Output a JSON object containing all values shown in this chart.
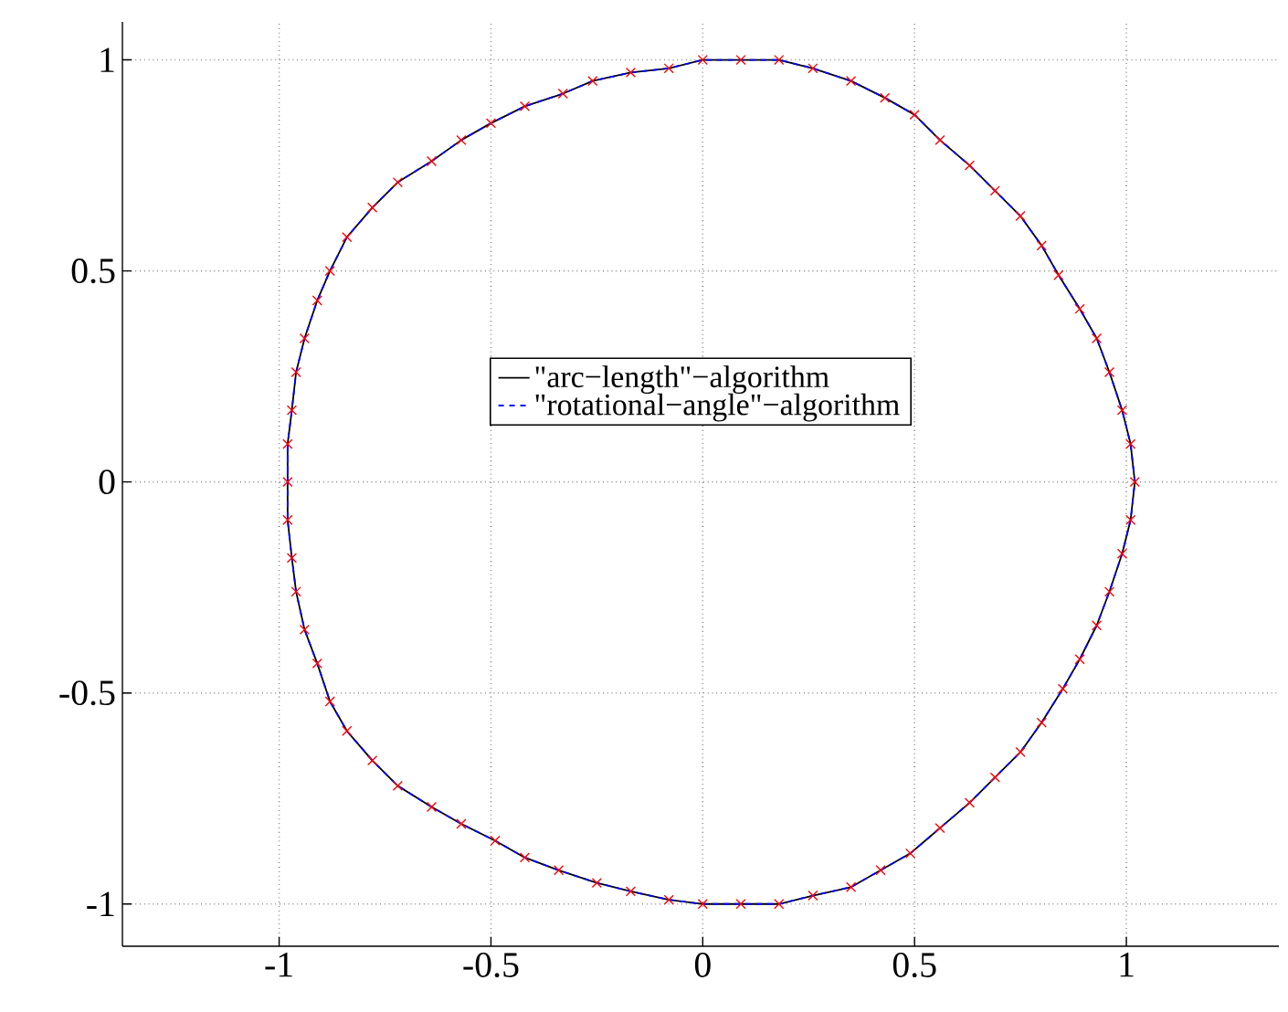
{
  "chart_data": {
    "type": "line",
    "xlim": [
      -1.37,
      1.36
    ],
    "ylim": [
      -1.1,
      1.09
    ],
    "xticks": [
      -1,
      -0.5,
      0,
      0.5,
      1
    ],
    "yticks": [
      -1,
      -0.5,
      0,
      0.5,
      1
    ],
    "grid": true,
    "legend": "center",
    "series": [
      {
        "name": "\"arc−length\"−algorithm",
        "color": "#000000",
        "line_style": "solid",
        "marker": "none",
        "x": [
          -0.98,
          -0.98,
          -0.97,
          -0.96,
          -0.94,
          -0.91,
          -0.88,
          -0.84,
          -0.78,
          -0.72,
          -0.64,
          -0.57,
          -0.5,
          -0.42,
          -0.33,
          -0.26,
          -0.17,
          -0.08,
          0,
          0.09,
          0.18,
          0.26,
          0.35,
          0.43,
          0.5,
          0.56,
          0.63,
          0.69,
          0.75,
          0.8,
          0.84,
          0.89,
          0.93,
          0.96,
          0.99,
          1.01,
          1.02,
          1.01,
          0.99,
          0.96,
          0.93,
          0.89,
          0.85,
          0.8,
          0.75,
          0.69,
          0.63,
          0.56,
          0.49,
          0.42,
          0.35,
          0.26,
          0.18,
          0.09,
          0,
          -0.08,
          -0.17,
          -0.25,
          -0.34,
          -0.42,
          -0.49,
          -0.57,
          -0.64,
          -0.72,
          -0.78,
          -0.84,
          -0.88,
          -0.91,
          -0.94,
          -0.96,
          -0.97,
          -0.98,
          -0.98,
          -0.98
        ],
        "values": [
          0,
          0.09,
          0.17,
          0.26,
          0.34,
          0.43,
          0.5,
          0.58,
          0.65,
          0.71,
          0.76,
          0.81,
          0.85,
          0.89,
          0.92,
          0.95,
          0.97,
          0.98,
          1,
          1,
          1,
          0.98,
          0.95,
          0.91,
          0.87,
          0.81,
          0.75,
          0.69,
          0.63,
          0.56,
          0.49,
          0.41,
          0.34,
          0.26,
          0.17,
          0.09,
          0,
          -0.09,
          -0.17,
          -0.26,
          -0.34,
          -0.42,
          -0.49,
          -0.57,
          -0.64,
          -0.7,
          -0.76,
          -0.82,
          -0.88,
          -0.92,
          -0.96,
          -0.98,
          -1,
          -1,
          -1,
          -0.99,
          -0.97,
          -0.95,
          -0.92,
          -0.89,
          -0.85,
          -0.81,
          -0.77,
          -0.72,
          -0.66,
          -0.59,
          -0.52,
          -0.43,
          -0.35,
          -0.26,
          -0.18,
          -0.09,
          0,
          0.09
        ]
      },
      {
        "name": "\"rotational−angle\"−algorithm",
        "color": "#0000ff",
        "line_style": "dashed",
        "marker": "none",
        "x": [
          -0.98,
          -0.98,
          -0.97,
          -0.96,
          -0.94,
          -0.91,
          -0.88,
          -0.84,
          -0.78,
          -0.72,
          -0.64,
          -0.57,
          -0.5,
          -0.42,
          -0.33,
          -0.26,
          -0.17,
          -0.08,
          0,
          0.09,
          0.18,
          0.26,
          0.35,
          0.43,
          0.5,
          0.56,
          0.63,
          0.69,
          0.75,
          0.8,
          0.84,
          0.89,
          0.93,
          0.96,
          0.99,
          1.01,
          1.02,
          1.01,
          0.99,
          0.96,
          0.93,
          0.89,
          0.85,
          0.8,
          0.75,
          0.69,
          0.63,
          0.56,
          0.49,
          0.42,
          0.35,
          0.26,
          0.18,
          0.09,
          0,
          -0.08,
          -0.17,
          -0.25,
          -0.34,
          -0.42,
          -0.49,
          -0.57,
          -0.64,
          -0.72,
          -0.78,
          -0.84,
          -0.88,
          -0.91,
          -0.94,
          -0.96,
          -0.97,
          -0.98,
          -0.98,
          -0.98
        ],
        "values": [
          0,
          0.09,
          0.17,
          0.26,
          0.34,
          0.43,
          0.5,
          0.58,
          0.65,
          0.71,
          0.76,
          0.81,
          0.85,
          0.89,
          0.92,
          0.95,
          0.97,
          0.98,
          1,
          1,
          1,
          0.98,
          0.95,
          0.91,
          0.87,
          0.81,
          0.75,
          0.69,
          0.63,
          0.56,
          0.49,
          0.41,
          0.34,
          0.26,
          0.17,
          0.09,
          0,
          -0.09,
          -0.17,
          -0.26,
          -0.34,
          -0.42,
          -0.49,
          -0.57,
          -0.64,
          -0.7,
          -0.76,
          -0.82,
          -0.88,
          -0.92,
          -0.96,
          -0.98,
          -1,
          -1,
          -1,
          -0.99,
          -0.97,
          -0.95,
          -0.92,
          -0.89,
          -0.85,
          -0.81,
          -0.77,
          -0.72,
          -0.66,
          -0.59,
          -0.52,
          -0.43,
          -0.35,
          -0.26,
          -0.18,
          -0.09,
          0,
          0.09
        ]
      },
      {
        "type": "scatter",
        "color": "#ff0000",
        "marker": "cross",
        "x": [
          -0.98,
          -0.98,
          -0.97,
          -0.96,
          -0.94,
          -0.91,
          -0.88,
          -0.84,
          -0.78,
          -0.72,
          -0.64,
          -0.57,
          -0.5,
          -0.42,
          -0.33,
          -0.26,
          -0.17,
          -0.08,
          0,
          0.09,
          0.18,
          0.26,
          0.35,
          0.43,
          0.5,
          0.56,
          0.63,
          0.69,
          0.75,
          0.8,
          0.84,
          0.89,
          0.93,
          0.96,
          0.99,
          1.01,
          1.02,
          1.01,
          0.99,
          0.96,
          0.93,
          0.89,
          0.85,
          0.8,
          0.75,
          0.69,
          0.63,
          0.56,
          0.49,
          0.42,
          0.35,
          0.26,
          0.18,
          0.09,
          0,
          -0.08,
          -0.17,
          -0.25,
          -0.34,
          -0.42,
          -0.49,
          -0.57,
          -0.64,
          -0.72,
          -0.78,
          -0.84,
          -0.88,
          -0.91,
          -0.94,
          -0.96,
          -0.97,
          -0.98
        ],
        "values": [
          0,
          0.09,
          0.17,
          0.26,
          0.34,
          0.43,
          0.5,
          0.58,
          0.65,
          0.71,
          0.76,
          0.81,
          0.85,
          0.89,
          0.92,
          0.95,
          0.97,
          0.98,
          1,
          1,
          1,
          0.98,
          0.95,
          0.91,
          0.87,
          0.81,
          0.75,
          0.69,
          0.63,
          0.56,
          0.49,
          0.41,
          0.34,
          0.26,
          0.17,
          0.09,
          0,
          -0.09,
          -0.17,
          -0.26,
          -0.34,
          -0.42,
          -0.49,
          -0.57,
          -0.64,
          -0.7,
          -0.76,
          -0.82,
          -0.88,
          -0.92,
          -0.96,
          -0.98,
          -1,
          -1,
          -1,
          -0.99,
          -0.97,
          -0.95,
          -0.92,
          -0.89,
          -0.85,
          -0.81,
          -0.77,
          -0.72,
          -0.66,
          -0.59,
          -0.52,
          -0.43,
          -0.35,
          -0.26,
          -0.18,
          -0.09
        ]
      }
    ]
  }
}
